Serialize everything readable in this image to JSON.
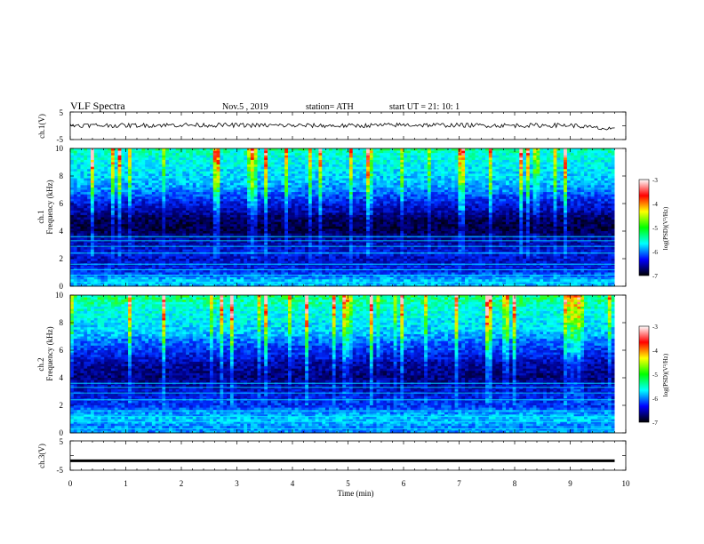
{
  "header": {
    "title": "VLF  Spectra",
    "date": "Nov.5  , 2019",
    "station": "station= ATH",
    "start": "start  UT  =   21: 10: 1"
  },
  "panels": {
    "ch1_voltage": {
      "label": "ch.1(V)",
      "yticks": [
        "5",
        "-5"
      ]
    },
    "ch1_spectrogram": {
      "label_channel": "ch.1",
      "label_axis": "Frequency  (kHz)",
      "yticks": [
        "0",
        "2",
        "4",
        "6",
        "8",
        "10"
      ]
    },
    "ch2_spectrogram": {
      "label_channel": "ch.2",
      "label_axis": "Frequency  (kHz)",
      "yticks": [
        "0",
        "2",
        "4",
        "6",
        "8",
        "10"
      ]
    },
    "ch3_voltage": {
      "label": "ch.3(V)",
      "yticks": [
        "5",
        "-5"
      ]
    }
  },
  "xaxis": {
    "label": "Time  (min)",
    "ticks": [
      "0",
      "1",
      "2",
      "3",
      "4",
      "5",
      "6",
      "7",
      "8",
      "9",
      "10"
    ]
  },
  "colorbar": {
    "label": "log(PSD)(V²/Hz)",
    "ticks": [
      "-3",
      "-4",
      "-5",
      "-6",
      "-7"
    ],
    "colors": [
      "#000000",
      "#00007f",
      "#0000ff",
      "#0080ff",
      "#00ffff",
      "#00ff80",
      "#00ff00",
      "#80ff00",
      "#ffff00",
      "#ff8000",
      "#ff0000",
      "#ff8080",
      "#ffffff"
    ]
  },
  "chart_data": [
    {
      "type": "line",
      "title": "",
      "xlabel": "Time  (min)",
      "ylabel": "ch.1(V)",
      "xlim": [
        0,
        10
      ],
      "ylim": [
        -5,
        5
      ],
      "x": [
        0,
        1,
        2,
        3,
        4,
        5,
        6,
        7,
        8,
        9,
        9.8
      ],
      "values": [
        0.2,
        0.1,
        0.3,
        0.2,
        0.1,
        0.0,
        0.3,
        0.2,
        0.1,
        0.2,
        -1.5
      ]
    },
    {
      "type": "heatmap",
      "title": "",
      "xlabel": "Time  (min)",
      "ylabel": "Frequency  (kHz)",
      "xlim": [
        0,
        10
      ],
      "ylim": [
        0,
        10
      ],
      "data_end_min": 9.8,
      "zlabel": "log(PSD)(V²/Hz)",
      "zlim": [
        -7,
        -3
      ],
      "freq_khz": [
        0.5,
        1,
        1.5,
        2,
        2.5,
        3,
        3.5,
        4,
        4.5,
        5,
        5.5,
        6,
        6.5,
        7,
        7.5,
        8,
        8.5,
        9,
        9.5,
        10
      ],
      "log_psd_typical": [
        -5.2,
        -5.8,
        -6.0,
        -6.1,
        -6.0,
        -6.2,
        -6.3,
        -6.7,
        -6.7,
        -6.6,
        -6.2,
        -6.0,
        -5.7,
        -5.4,
        -5.2,
        -5.1,
        -5.0,
        -4.9,
        -4.8,
        -4.6
      ]
    },
    {
      "type": "heatmap",
      "title": "",
      "xlabel": "Time  (min)",
      "ylabel": "Frequency  (kHz)",
      "xlim": [
        0,
        10
      ],
      "ylim": [
        0,
        10
      ],
      "data_end_min": 9.8,
      "zlabel": "log(PSD)(V²/Hz)",
      "zlim": [
        -7,
        -3
      ],
      "freq_khz": [
        0.5,
        1,
        1.5,
        2,
        2.5,
        3,
        3.5,
        4,
        4.5,
        5,
        5.5,
        6,
        6.5,
        7,
        7.5,
        8,
        8.5,
        9,
        9.5,
        10
      ],
      "log_psd_typical": [
        -5.4,
        -5.1,
        -5.4,
        -5.8,
        -5.9,
        -6.1,
        -6.2,
        -6.5,
        -6.4,
        -6.3,
        -6.0,
        -5.8,
        -5.6,
        -5.3,
        -5.1,
        -5.0,
        -4.9,
        -4.8,
        -4.6,
        -4.5
      ]
    },
    {
      "type": "line",
      "title": "",
      "xlabel": "Time  (min)",
      "ylabel": "ch.3(V)",
      "xlim": [
        0,
        10
      ],
      "ylim": [
        -5,
        5
      ],
      "x": [
        0,
        9.8
      ],
      "values": [
        -1.8,
        -1.8
      ]
    }
  ]
}
